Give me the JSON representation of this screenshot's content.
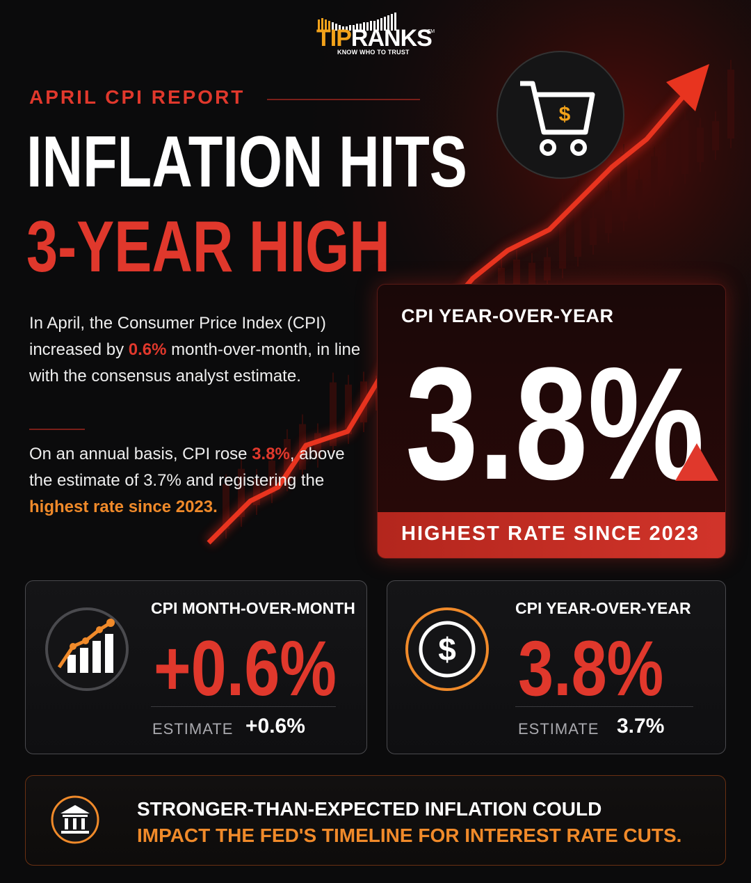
{
  "brand": {
    "name_part1": "TIP",
    "name_part2": "RANKS",
    "tm": "TM",
    "tagline": "KNOW WHO TO TRUST"
  },
  "header": {
    "kicker": "APRIL CPI REPORT",
    "title_line1": "INFLATION HITS",
    "title_line2": "3-YEAR HIGH"
  },
  "body": {
    "p1": {
      "before": "In April, the Consumer Price Index (CPI) increased by ",
      "highlight": "0.6%",
      "after": " month-over-month, in line with the consensus analyst estimate."
    },
    "p2": {
      "before": "On an annual basis, CPI rose ",
      "highlight": "3.8%",
      "middle": ", above the estimate of 3.7% and registering the ",
      "highlight2": "highest rate since 2023."
    }
  },
  "feature_card": {
    "label": "CPI YEAR-OVER-YEAR",
    "value": "3.8%",
    "band": "HIGHEST RATE SINCE 2023"
  },
  "cards": [
    {
      "label": "CPI MONTH-OVER-MONTH",
      "value": "+0.6%",
      "estimate_label": "ESTIMATE",
      "estimate_value": "+0.6%",
      "icon": "bar-chart-growth-icon"
    },
    {
      "label": "CPI YEAR-OVER-YEAR",
      "value": "3.8%",
      "estimate_label": "ESTIMATE",
      "estimate_value": "3.7%",
      "icon": "dollar-coin-icon"
    }
  ],
  "note": {
    "line1": "STRONGER-THAN-EXPECTED INFLATION COULD",
    "line2": "IMPACT THE FED'S TIMELINE FOR INTEREST RATE CUTS.",
    "icon": "bank-building-icon"
  },
  "colors": {
    "accent_red": "#e0382c",
    "accent_orange": "#f08a2a",
    "background": "#0b0b0c"
  },
  "decor": {
    "cart_icon": "shopping-cart-dollar-icon",
    "trend": "rising-red-trend-arrow"
  }
}
